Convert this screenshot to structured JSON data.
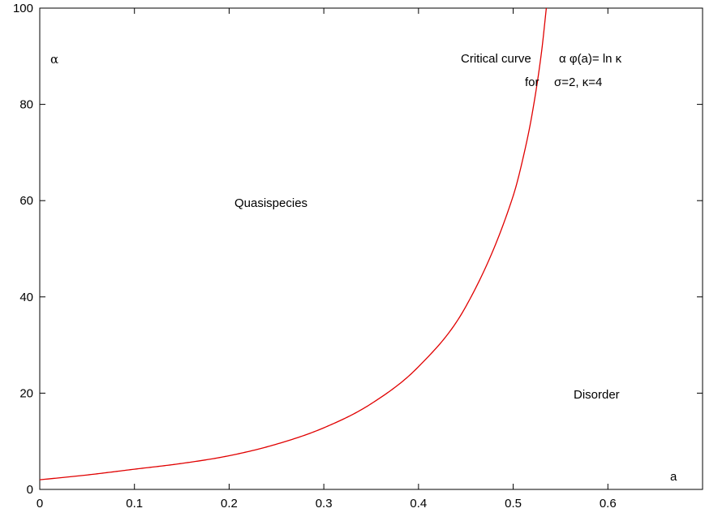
{
  "chart_data": {
    "type": "line",
    "xlim": [
      0,
      0.7
    ],
    "ylim": [
      0,
      100
    ],
    "x_ticks": [
      "0",
      "0.1",
      "0.2",
      "0.3",
      "0.4",
      "0.5",
      "0.6"
    ],
    "y_ticks": [
      "0",
      "20",
      "40",
      "60",
      "80",
      "100"
    ],
    "xlabel": "a",
    "ylabel": "α",
    "grid": false,
    "series": [
      {
        "name": "Critical curve",
        "color": "#e00000",
        "x": [
          0,
          0.05,
          0.1,
          0.15,
          0.2,
          0.25,
          0.3,
          0.35,
          0.4,
          0.45,
          0.5,
          0.51,
          0.52,
          0.53,
          0.535
        ],
        "y": [
          2.0,
          3.0,
          4.2,
          5.4,
          7.0,
          9.4,
          12.8,
          17.8,
          25.5,
          38.0,
          61.0,
          68.5,
          78.0,
          91.0,
          100
        ]
      }
    ],
    "annotations": {
      "curve_title": "Critical curve",
      "curve_equation": "α φ(a)= ln κ",
      "curve_for": "for",
      "curve_params": "σ=2, κ=4",
      "region_upper": "Quasispecies",
      "region_lower": "Disorder"
    }
  }
}
